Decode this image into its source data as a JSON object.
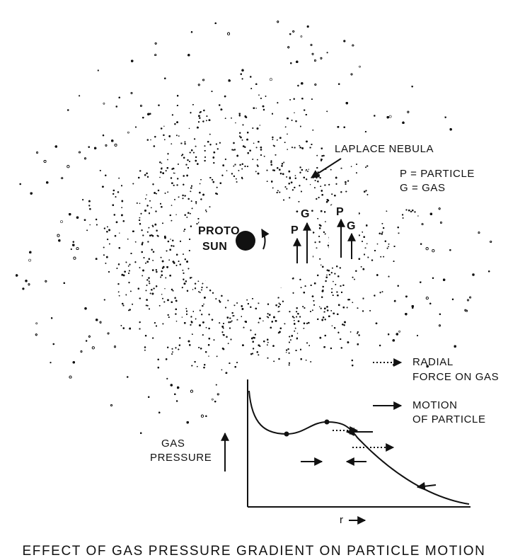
{
  "labels": {
    "nebula": "LAPLACE NEBULA",
    "particle_key": "P = PARTICLE",
    "gas_key": "G = GAS",
    "proto": "PROTO",
    "sun": "SUN",
    "p": "P",
    "g": "G",
    "radial_line1": "RADIAL",
    "radial_line2": "FORCE ON GAS",
    "motion_line1": "MOTION",
    "motion_line2": "OF PARTICLE",
    "gas_line1": "GAS",
    "gas_line2": "PRESSURE",
    "r_axis": "r"
  },
  "caption": "EFFECT OF GAS PRESSURE GRADIENT ON PARTICLE MOTION",
  "colors": {
    "ink": "#111111",
    "paper": "#ffffff"
  }
}
